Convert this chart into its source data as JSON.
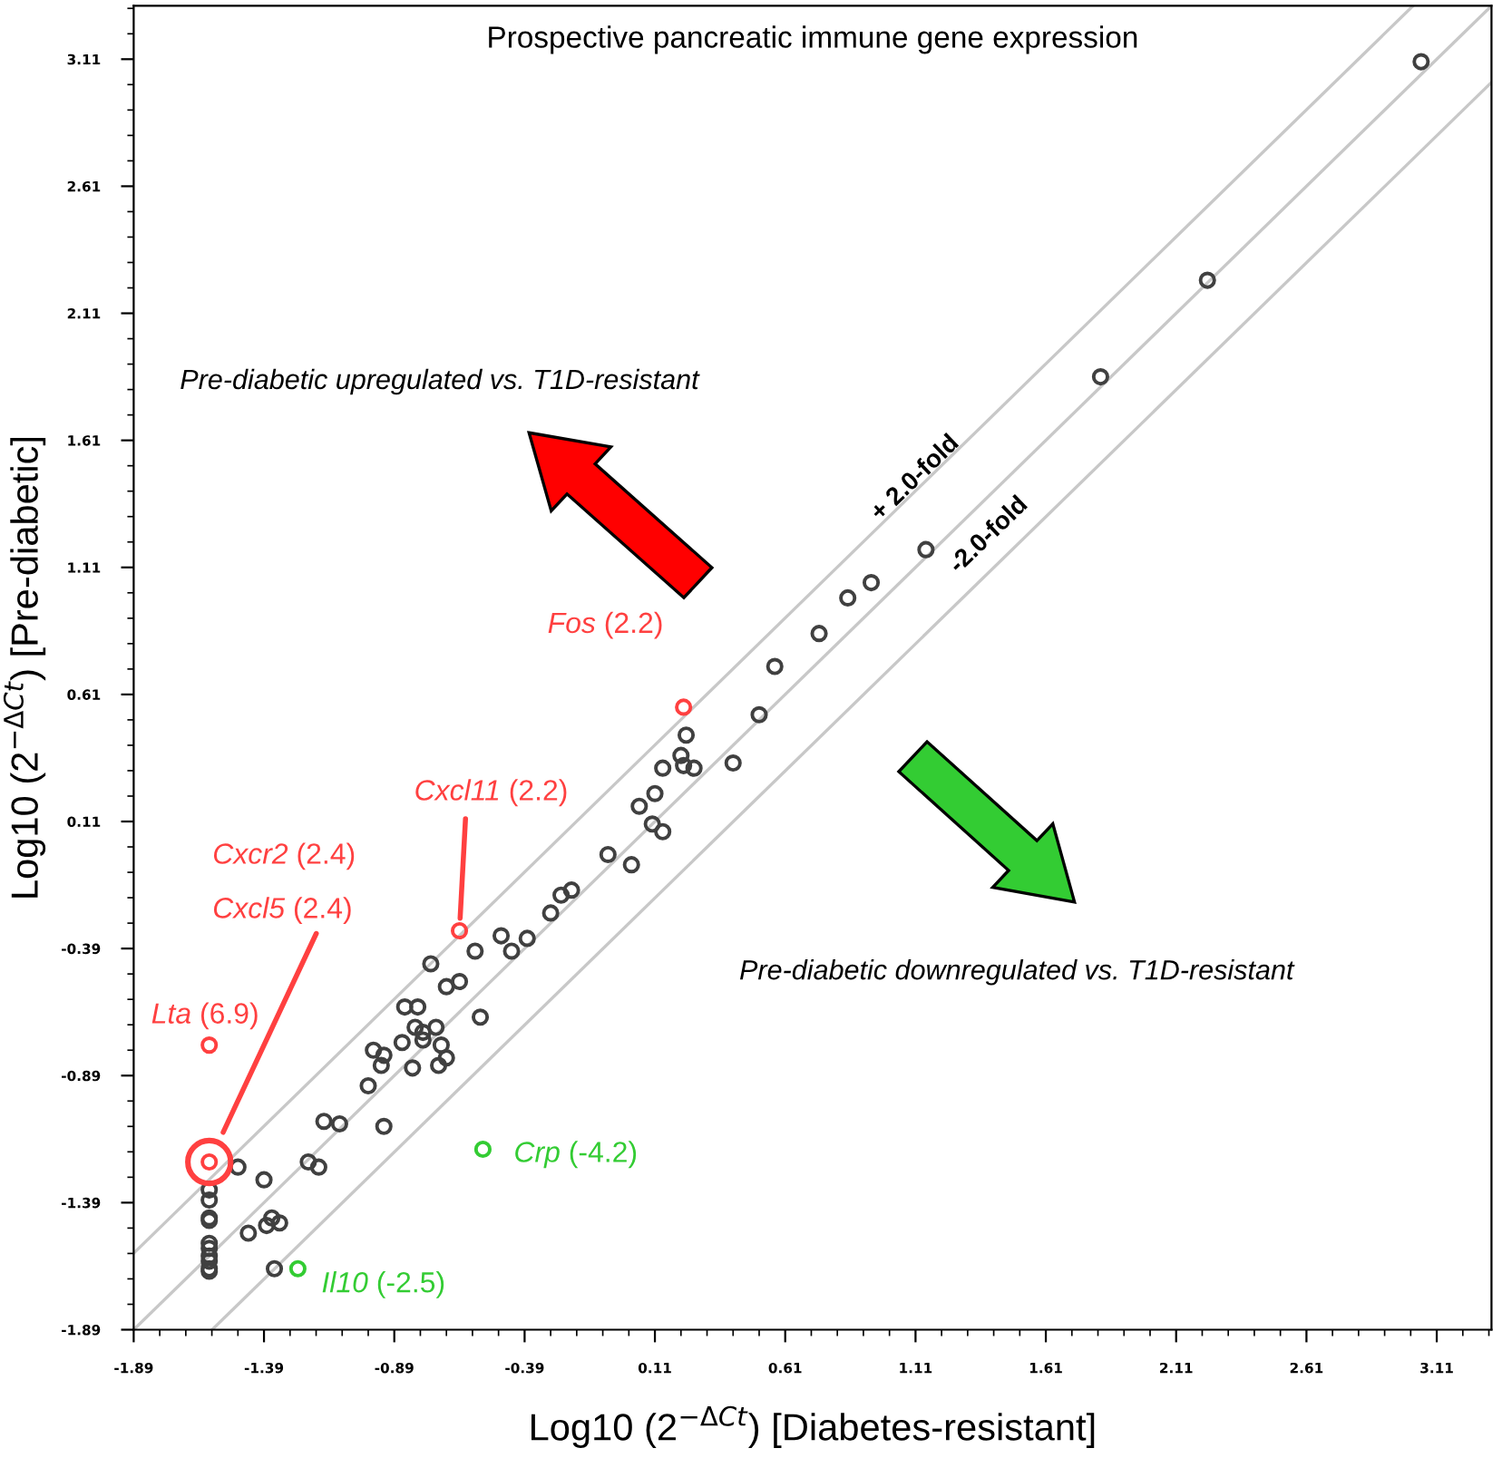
{
  "chart_data": {
    "type": "scatter",
    "title": "Prospective pancreatic immune gene expression",
    "xlabel": "Log10 (2$^{−ΔCt}$) [Diabetes-resistant]",
    "ylabel": "Log10 (2$^{−ΔCt}$) [Pre-diabetic]",
    "xlim": [
      -1.89,
      3.32
    ],
    "ylim": [
      -1.89,
      3.32
    ],
    "xticks": [
      -1.89,
      -1.39,
      -0.89,
      -0.39,
      0.11,
      0.61,
      1.11,
      1.61,
      2.11,
      2.61,
      3.11
    ],
    "yticks": [
      -1.89,
      -1.39,
      -0.89,
      -0.39,
      0.11,
      0.61,
      1.11,
      1.61,
      2.11,
      2.61,
      3.11
    ],
    "grid": false,
    "marker": "circle",
    "series": [
      {
        "type": "line",
        "marker": "none",
        "color": "#c8c8c8",
        "line_style": "solid",
        "x": [
          -1.89,
          3.019
        ],
        "values": [
          -1.589,
          3.32
        ]
      },
      {
        "type": "line",
        "marker": "none",
        "color": "#c8c8c8",
        "line_style": "solid",
        "x": [
          -1.89,
          3.32
        ],
        "values": [
          -1.89,
          3.32
        ]
      },
      {
        "type": "line",
        "marker": "none",
        "color": "#c8c8c8",
        "line_style": "solid",
        "x": [
          -1.589,
          3.32
        ],
        "values": [
          -1.89,
          3.019
        ]
      },
      {
        "color": "#404040",
        "x": [
          -1.6,
          -1.6,
          -1.6,
          -1.6,
          -1.6,
          -1.6,
          -1.6,
          -1.6,
          -1.6,
          -1.6,
          -1.49,
          -1.39,
          -1.45,
          -1.38,
          -1.36,
          -1.33,
          -1.35,
          -1.22,
          -1.18,
          -1.16,
          -1.1,
          -0.99,
          -0.97,
          -0.93,
          -0.94,
          -0.93,
          -0.86,
          -0.85,
          -0.8,
          -0.81,
          -0.78,
          -0.78,
          -0.82,
          -0.73,
          -0.71,
          -0.69,
          -0.72,
          -0.69,
          -0.64,
          -0.75,
          -0.58,
          -0.56,
          -0.48,
          -0.44,
          -0.38,
          -0.29,
          -0.25,
          -0.21,
          -0.07,
          0.02,
          0.05,
          0.11,
          0.1,
          0.14,
          0.14,
          0.21,
          0.23,
          0.22,
          0.26,
          0.41,
          0.51,
          0.57,
          0.74,
          0.85,
          0.94,
          1.15,
          1.82,
          2.23,
          3.05
        ],
        "values": [
          -1.34,
          -1.38,
          -1.45,
          -1.46,
          -1.55,
          -1.57,
          -1.6,
          -1.62,
          -1.65,
          -1.66,
          -1.25,
          -1.3,
          -1.51,
          -1.48,
          -1.45,
          -1.47,
          -1.65,
          -1.23,
          -1.25,
          -1.07,
          -1.08,
          -0.93,
          -0.79,
          -0.81,
          -0.85,
          -1.09,
          -0.76,
          -0.62,
          -0.62,
          -0.7,
          -0.72,
          -0.75,
          -0.86,
          -0.7,
          -0.77,
          -0.82,
          -0.85,
          -0.54,
          -0.52,
          -0.45,
          -0.4,
          -0.66,
          -0.34,
          -0.4,
          -0.35,
          -0.25,
          -0.18,
          -0.16,
          -0.02,
          -0.06,
          0.17,
          0.22,
          0.1,
          0.07,
          0.32,
          0.37,
          0.45,
          0.33,
          0.32,
          0.34,
          0.53,
          0.72,
          0.85,
          0.99,
          1.05,
          1.18,
          1.86,
          2.24,
          3.1
        ]
      },
      {
        "color": "#ff4040",
        "x": [
          -1.6,
          -1.6,
          -0.64,
          0.22
        ],
        "values": [
          -1.23,
          -0.77,
          -0.32,
          0.56
        ]
      },
      {
        "color": "#33cc33",
        "x": [
          -0.55,
          -1.26
        ],
        "values": [
          -1.18,
          -1.65
        ]
      }
    ],
    "annotations": [
      "Pre-diabetic upregulated vs. T1D-resistant",
      "Pre-diabetic downregulated vs. T1D-resistant",
      {
        "text": "+ 2.0-fold",
        "x": 1.11,
        "y": 1.46
      },
      "-2.0-fold",
      {
        "text": "Lta (6.9)",
        "x": -1.6,
        "y": -0.77
      },
      "Cxcr2 (2.4)",
      "Cxcl5 (2.4)",
      {
        "text": "Cxcl11 (2.2)",
        "x": -0.64,
        "y": -0.32
      },
      {
        "text": "Fos (2.2)",
        "x": 0.22,
        "y": 0.56
      },
      {
        "text": "Crp (-4.2)",
        "x": -0.55,
        "y": -1.18
      },
      {
        "text": "Il10 (-2.5)",
        "x": -1.26,
        "y": -1.65
      }
    ]
  }
}
